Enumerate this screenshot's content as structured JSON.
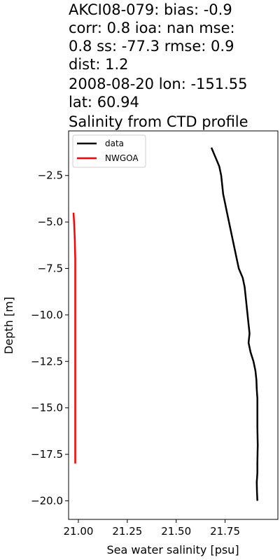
{
  "chart_data": {
    "type": "line",
    "title_lines": [
      "AKCI08-079: bias: -0.9",
      "corr: 0.8  ioa: nan  mse:",
      "0.8  ss: -77.3  rmse: 0.9",
      "dist: 1.2",
      "2008-08-20 lon: -151.55",
      "lat: 60.94",
      "Salinity from CTD profile"
    ],
    "xlabel": "Sea water salinity [psu]",
    "ylabel": "Depth [m]",
    "xlim": [
      20.95,
      22.02
    ],
    "ylim": [
      -21.0,
      -0.1
    ],
    "x_ticks": [
      21.0,
      21.25,
      21.5,
      21.75
    ],
    "x_tick_labels": [
      "21.00",
      "21.25",
      "21.50",
      "21.75"
    ],
    "y_ticks": [
      -2.5,
      -5.0,
      -7.5,
      -10.0,
      -12.5,
      -15.0,
      -17.5,
      -20.0
    ],
    "y_tick_labels": [
      "−2.5",
      "−5.0",
      "−7.5",
      "−10.0",
      "−12.5",
      "−15.0",
      "−17.5",
      "−20.0"
    ],
    "grid": false,
    "legend_position": "top-left",
    "series": [
      {
        "name": "data",
        "color": "#000000",
        "points": [
          [
            21.68,
            -1.0
          ],
          [
            21.7,
            -1.5
          ],
          [
            21.72,
            -2.0
          ],
          [
            21.73,
            -2.5
          ],
          [
            21.735,
            -3.0
          ],
          [
            21.74,
            -3.5
          ],
          [
            21.75,
            -4.0
          ],
          [
            21.76,
            -4.5
          ],
          [
            21.77,
            -5.0
          ],
          [
            21.78,
            -5.5
          ],
          [
            21.79,
            -6.0
          ],
          [
            21.8,
            -6.5
          ],
          [
            21.81,
            -7.0
          ],
          [
            21.82,
            -7.5
          ],
          [
            21.84,
            -8.0
          ],
          [
            21.85,
            -8.5
          ],
          [
            21.855,
            -9.0
          ],
          [
            21.86,
            -9.5
          ],
          [
            21.865,
            -10.0
          ],
          [
            21.87,
            -10.5
          ],
          [
            21.875,
            -11.0
          ],
          [
            21.87,
            -11.5
          ],
          [
            21.88,
            -12.0
          ],
          [
            21.895,
            -12.5
          ],
          [
            21.905,
            -13.0
          ],
          [
            21.91,
            -13.5
          ],
          [
            21.912,
            -14.0
          ],
          [
            21.915,
            -14.5
          ],
          [
            21.915,
            -15.0
          ],
          [
            21.915,
            -15.5
          ],
          [
            21.915,
            -16.0
          ],
          [
            21.916,
            -16.5
          ],
          [
            21.917,
            -17.0
          ],
          [
            21.916,
            -17.5
          ],
          [
            21.915,
            -18.0
          ],
          [
            21.915,
            -18.5
          ],
          [
            21.912,
            -19.0
          ],
          [
            21.913,
            -19.5
          ],
          [
            21.915,
            -20.0
          ]
        ]
      },
      {
        "name": "NWGOA",
        "color": "#ff0000",
        "points": [
          [
            20.975,
            -4.5
          ],
          [
            20.978,
            -5.0
          ],
          [
            20.98,
            -5.5
          ],
          [
            20.982,
            -6.0
          ],
          [
            20.983,
            -6.5
          ],
          [
            20.984,
            -7.0
          ],
          [
            20.984,
            -8.0
          ],
          [
            20.984,
            -9.0
          ],
          [
            20.984,
            -10.0
          ],
          [
            20.984,
            -11.0
          ],
          [
            20.984,
            -12.0
          ],
          [
            20.984,
            -13.0
          ],
          [
            20.984,
            -14.0
          ],
          [
            20.984,
            -15.0
          ],
          [
            20.984,
            -16.0
          ],
          [
            20.984,
            -17.0
          ],
          [
            20.984,
            -18.0
          ]
        ]
      }
    ]
  }
}
